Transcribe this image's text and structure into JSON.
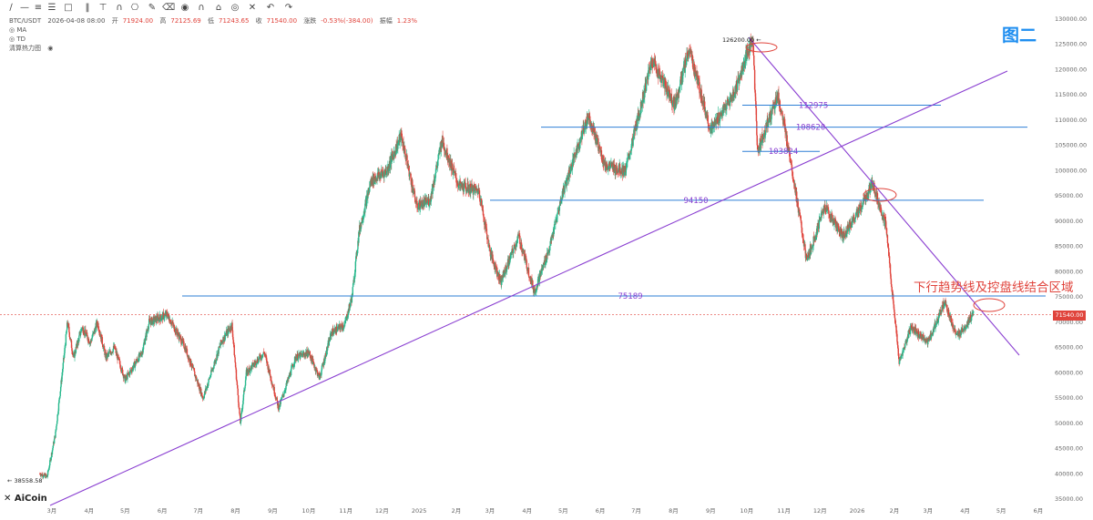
{
  "toolbar": {
    "icons": [
      "pencil-icon",
      "line-icon",
      "horizontal-lines-icon",
      "list-icon",
      "rectangle-icon",
      "fibonacci-icon",
      "pitchfork-icon",
      "pattern-icon",
      "measure-icon",
      "brush-icon",
      "eraser-icon",
      "camera-icon",
      "magnet-icon",
      "lock-icon",
      "eye-icon",
      "delete-icon",
      "undo-icon",
      "redo-icon"
    ],
    "glyphs": [
      "∕",
      "—",
      "≡",
      "☰",
      "□",
      "‖",
      "⊤",
      "∩",
      "⎔",
      "✎",
      "⌫",
      "◉",
      "∩",
      "⌂",
      "◎",
      "✕",
      "↶",
      "↷"
    ]
  },
  "header": {
    "symbol": "BTC/USDT",
    "date": "2026-04-08 08:00",
    "open_label": "开",
    "open": "71924.00",
    "high_label": "高",
    "high": "72125.69",
    "low_label": "低",
    "low": "71243.65",
    "close_label": "收",
    "close": "71540.00",
    "change_label": "涨跌",
    "change": "-0.53%(-384.00)",
    "amp_label": "振幅",
    "amp": "1.23%",
    "indicators": [
      "MA",
      "TD",
      "清算热力图"
    ]
  },
  "figure_label": "图二",
  "annotation": "下行趋势线及控盘线结合区域",
  "logo": "AiCoin",
  "current_price_tag": "71540.00",
  "colors": {
    "up": "#26b88c",
    "down": "#e0443c",
    "hline": "#2e7fd6",
    "trend": "#8a3fd1",
    "label": "#1f8ef0"
  },
  "chart_data": {
    "type": "candlestick",
    "title": "",
    "y_ticks": [
      35000,
      40000,
      45000,
      50000,
      55000,
      60000,
      65000,
      70000,
      75000,
      80000,
      85000,
      90000,
      95000,
      100000,
      105000,
      110000,
      115000,
      120000,
      125000,
      130000
    ],
    "ylim": [
      33000,
      132500
    ],
    "x_ticks": [
      "3月",
      "4月",
      "5月",
      "6月",
      "7月",
      "8月",
      "9月",
      "10月",
      "11月",
      "12月",
      "2025",
      "2月",
      "3月",
      "4月",
      "5月",
      "6月",
      "7月",
      "8月",
      "9月",
      "10月",
      "11月",
      "12月",
      "2026",
      "2月",
      "3月",
      "4月",
      "5月",
      "6月"
    ],
    "price_series": [
      {
        "d": "2024-02-20",
        "p": 40000
      },
      {
        "d": "2024-02-26",
        "p": 39400
      },
      {
        "d": "2024-03-04",
        "p": 48000
      },
      {
        "d": "2024-03-11",
        "p": 63000
      },
      {
        "d": "2024-03-14",
        "p": 70000
      },
      {
        "d": "2024-03-19",
        "p": 63000
      },
      {
        "d": "2024-03-26",
        "p": 69000
      },
      {
        "d": "2024-04-02",
        "p": 66000
      },
      {
        "d": "2024-04-08",
        "p": 70000
      },
      {
        "d": "2024-04-15",
        "p": 63000
      },
      {
        "d": "2024-04-22",
        "p": 65000
      },
      {
        "d": "2024-05-01",
        "p": 58600
      },
      {
        "d": "2024-05-15",
        "p": 64000
      },
      {
        "d": "2024-05-21",
        "p": 70000
      },
      {
        "d": "2024-06-05",
        "p": 71500
      },
      {
        "d": "2024-06-20",
        "p": 65000
      },
      {
        "d": "2024-07-05",
        "p": 55000
      },
      {
        "d": "2024-07-20",
        "p": 66000
      },
      {
        "d": "2024-07-29",
        "p": 69500
      },
      {
        "d": "2024-08-05",
        "p": 50000
      },
      {
        "d": "2024-08-10",
        "p": 60000
      },
      {
        "d": "2024-08-25",
        "p": 64000
      },
      {
        "d": "2024-09-06",
        "p": 53000
      },
      {
        "d": "2024-09-20",
        "p": 63000
      },
      {
        "d": "2024-10-01",
        "p": 64000
      },
      {
        "d": "2024-10-10",
        "p": 59000
      },
      {
        "d": "2024-10-20",
        "p": 68000
      },
      {
        "d": "2024-10-31",
        "p": 69500
      },
      {
        "d": "2024-11-06",
        "p": 75000
      },
      {
        "d": "2024-11-12",
        "p": 88000
      },
      {
        "d": "2024-11-22",
        "p": 98000
      },
      {
        "d": "2024-12-05",
        "p": 100000
      },
      {
        "d": "2024-12-17",
        "p": 107000
      },
      {
        "d": "2024-12-30",
        "p": 93000
      },
      {
        "d": "2025-01-10",
        "p": 94000
      },
      {
        "d": "2025-01-20",
        "p": 106000
      },
      {
        "d": "2025-02-03",
        "p": 97000
      },
      {
        "d": "2025-02-20",
        "p": 96000
      },
      {
        "d": "2025-03-01",
        "p": 84000
      },
      {
        "d": "2025-03-10",
        "p": 78000
      },
      {
        "d": "2025-03-25",
        "p": 87000
      },
      {
        "d": "2025-04-07",
        "p": 76000
      },
      {
        "d": "2025-04-20",
        "p": 85000
      },
      {
        "d": "2025-05-01",
        "p": 96000
      },
      {
        "d": "2025-05-22",
        "p": 111000
      },
      {
        "d": "2025-06-05",
        "p": 101000
      },
      {
        "d": "2025-06-22",
        "p": 100000
      },
      {
        "d": "2025-07-14",
        "p": 122000
      },
      {
        "d": "2025-08-02",
        "p": 113000
      },
      {
        "d": "2025-08-14",
        "p": 124000
      },
      {
        "d": "2025-09-01",
        "p": 108000
      },
      {
        "d": "2025-09-20",
        "p": 115000
      },
      {
        "d": "2025-10-06",
        "p": 126200
      },
      {
        "d": "2025-10-10",
        "p": 104000
      },
      {
        "d": "2025-10-27",
        "p": 115000
      },
      {
        "d": "2025-11-06",
        "p": 103000
      },
      {
        "d": "2025-11-20",
        "p": 82000
      },
      {
        "d": "2025-12-05",
        "p": 93000
      },
      {
        "d": "2025-12-20",
        "p": 87000
      },
      {
        "d": "2026-01-05",
        "p": 93000
      },
      {
        "d": "2026-01-14",
        "p": 97500
      },
      {
        "d": "2026-01-25",
        "p": 89000
      },
      {
        "d": "2026-02-05",
        "p": 62000
      },
      {
        "d": "2026-02-15",
        "p": 69000
      },
      {
        "d": "2026-03-01",
        "p": 66000
      },
      {
        "d": "2026-03-15",
        "p": 74000
      },
      {
        "d": "2026-03-25",
        "p": 67000
      },
      {
        "d": "2026-04-08",
        "p": 71540
      }
    ],
    "horizontal_levels": [
      {
        "value": 112975,
        "label": "112975"
      },
      {
        "value": 108620,
        "label": "108620"
      },
      {
        "value": 103824,
        "label": "103824"
      },
      {
        "value": 94150,
        "label": "94150"
      },
      {
        "value": 75189,
        "label": "75189"
      }
    ],
    "current_price": 71540,
    "annotations": [
      {
        "label": "126200.00",
        "value": 126200
      },
      {
        "label": "38558.58",
        "value": 38558.58
      }
    ],
    "grid": false
  }
}
